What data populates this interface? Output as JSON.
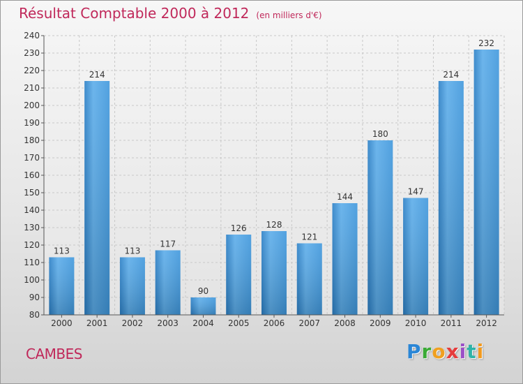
{
  "chart_data": {
    "type": "bar",
    "title": "Résultat Comptable 2000 à 2012",
    "subtitle": "(en milliers d'€)",
    "categories": [
      "2000",
      "2001",
      "2002",
      "2003",
      "2004",
      "2005",
      "2006",
      "2007",
      "2008",
      "2009",
      "2010",
      "2011",
      "2012"
    ],
    "values": [
      113,
      214,
      113,
      117,
      90,
      126,
      128,
      121,
      144,
      180,
      147,
      214,
      232
    ],
    "ylim": [
      80,
      240
    ],
    "ytick_step": 10,
    "xlabel": "",
    "ylabel": "",
    "grid": true,
    "bar_color": "#3f97dc",
    "bar_color_light": "#5cadea",
    "bar_color_dark": "#2a7fc6"
  },
  "footer": {
    "commune": "CAMBES",
    "brand_letters": [
      "P",
      "r",
      "o",
      "x",
      "i",
      "t",
      "i"
    ]
  },
  "colors": {
    "title": "#c0285a",
    "axis": "#555555",
    "grid": "#c8c8c8"
  }
}
